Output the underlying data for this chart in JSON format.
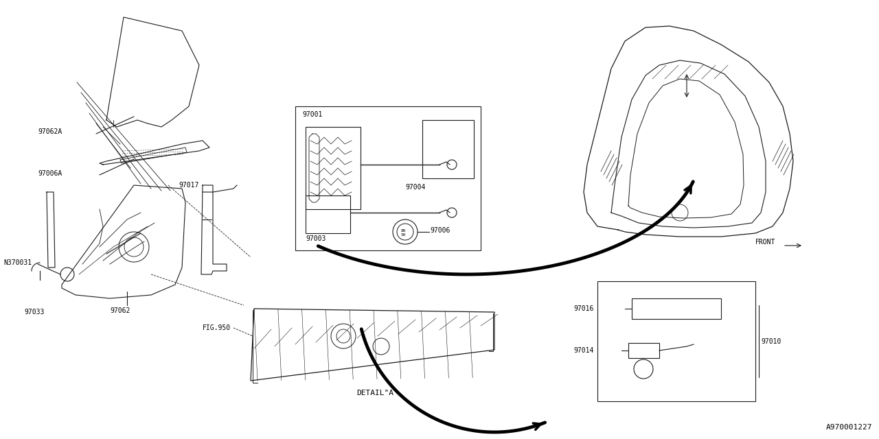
{
  "bg_color": "#ffffff",
  "line_color": "#1a1a1a",
  "fig_width": 12.8,
  "fig_height": 6.4,
  "diagram_id": "A970001227",
  "detail_label": "DETAIL\"A\"",
  "fig_ref": "FIG.950",
  "front_label": "FRONT→"
}
